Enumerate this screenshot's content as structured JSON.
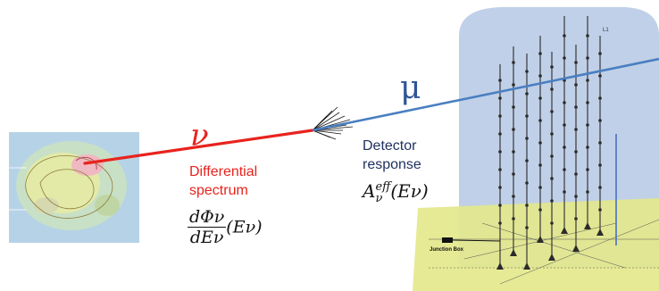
{
  "labels": {
    "neutrino_symbol": "ν",
    "muon_symbol": "μ",
    "differential_line1": "Differential",
    "differential_line2": "spectrum",
    "detector_line1": "Detector",
    "detector_line2": "response",
    "junction_box": "Junction Box",
    "string_label": "L1"
  },
  "formulas": {
    "flux_numerator": "dΦν",
    "flux_denominator": "dEν",
    "flux_argument": "(Eν)",
    "effective_area_base": "A",
    "effective_area_sub": "ν",
    "effective_area_sup": "eff",
    "effective_area_argument": "(Eν)"
  },
  "colors": {
    "neutrino": "#e8231d",
    "muon": "#4a7fc1",
    "detector_water": "#b9cbe6",
    "seabed": "#e3e88a",
    "text_blue": "#1f2f5e"
  }
}
